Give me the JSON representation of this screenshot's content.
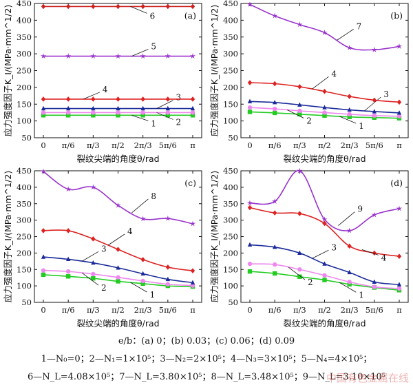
{
  "chart_data": [
    {
      "type": "line",
      "panel_label": "(a)",
      "ylabel": "应力强度因子K_I/(MPa·mm^1/2)",
      "xlabel": "裂纹尖端的角度θ/rad",
      "categories": [
        "0",
        "π/6",
        "π/3",
        "π/2",
        "2π/3",
        "5π/6",
        "π"
      ],
      "ylim": [
        50,
        450
      ],
      "yticks": [
        50,
        100,
        150,
        200,
        250,
        300,
        350,
        400,
        450
      ],
      "series": [
        {
          "name": "1",
          "color": "#22cc22",
          "marker": "square",
          "values": [
            117,
            117,
            117,
            117,
            117,
            117,
            117
          ]
        },
        {
          "name": "2",
          "color": "#ee88ee",
          "marker": "circle",
          "values": [
            125,
            125,
            125,
            125,
            125,
            125,
            125
          ]
        },
        {
          "name": "3",
          "color": "#1a2a99",
          "marker": "triangle",
          "values": [
            137,
            137,
            137,
            137,
            137,
            137,
            137
          ]
        },
        {
          "name": "4",
          "color": "#dd2222",
          "marker": "diamond",
          "values": [
            165,
            165,
            165,
            165,
            165,
            165,
            165
          ]
        },
        {
          "name": "5",
          "color": "#9933cc",
          "marker": "star",
          "values": [
            293,
            293,
            293,
            293,
            293,
            293,
            293
          ]
        },
        {
          "name": "6",
          "color": "#cc2222",
          "marker": "diamond",
          "values": [
            441,
            441,
            441,
            441,
            441,
            441,
            441
          ]
        }
      ]
    },
    {
      "type": "line",
      "panel_label": "(b)",
      "ylabel": "应力强度因子K_I/(MPa·mm^1/2)",
      "xlabel": "裂纹尖端的角度θ/rad",
      "categories": [
        "0",
        "π/6",
        "π/3",
        "π/2",
        "2π/3",
        "5π/6",
        "π"
      ],
      "ylim": [
        50,
        450
      ],
      "yticks": [
        50,
        100,
        150,
        200,
        250,
        300,
        350,
        400,
        450
      ],
      "series": [
        {
          "name": "1",
          "color": "#22cc22",
          "marker": "square",
          "values": [
            127,
            124,
            120,
            116,
            112,
            110,
            108
          ]
        },
        {
          "name": "2",
          "color": "#ee88ee",
          "marker": "circle",
          "values": [
            140,
            136,
            130,
            125,
            120,
            116,
            114
          ]
        },
        {
          "name": "3",
          "color": "#1a2a99",
          "marker": "triangle",
          "values": [
            158,
            155,
            148,
            140,
            133,
            128,
            124
          ]
        },
        {
          "name": "4",
          "color": "#dd2222",
          "marker": "diamond",
          "values": [
            214,
            211,
            202,
            188,
            173,
            162,
            156
          ]
        },
        {
          "name": "7",
          "color": "#9933cc",
          "marker": "star",
          "values": [
            447,
            413,
            387,
            363,
            318,
            312,
            322
          ]
        }
      ]
    },
    {
      "type": "line",
      "panel_label": "(c)",
      "ylabel": "应力强度因子K_I/(MPa·mm^1/2)",
      "xlabel": "裂纹尖端的角度θ/rad",
      "categories": [
        "0",
        "π/6",
        "π/3",
        "π/2",
        "2π/3",
        "5π/6",
        "π"
      ],
      "ylim": [
        50,
        450
      ],
      "yticks": [
        50,
        100,
        150,
        200,
        250,
        300,
        350,
        400,
        450
      ],
      "series": [
        {
          "name": "1",
          "color": "#22cc22",
          "marker": "square",
          "values": [
            134,
            129,
            123,
            114,
            107,
            100,
            98
          ]
        },
        {
          "name": "2",
          "color": "#ee88ee",
          "marker": "circle",
          "values": [
            147,
            144,
            136,
            126,
            115,
            105,
            101
          ]
        },
        {
          "name": "3",
          "color": "#1a2a99",
          "marker": "triangle",
          "values": [
            188,
            181,
            170,
            155,
            137,
            120,
            110
          ]
        },
        {
          "name": "4",
          "color": "#dd2222",
          "marker": "diamond",
          "values": [
            268,
            268,
            243,
            211,
            180,
            157,
            146
          ]
        },
        {
          "name": "8",
          "color": "#9933cc",
          "marker": "star",
          "values": [
            448,
            394,
            400,
            345,
            304,
            305,
            289
          ]
        }
      ]
    },
    {
      "type": "line",
      "panel_label": "(d)",
      "ylabel": "应力强度因子K_I/(MPa·mm^1/2)",
      "xlabel": "裂纹尖端的角度θ/rad",
      "categories": [
        "0",
        "π/6",
        "π/3",
        "π/2",
        "2π/3",
        "5π/6",
        "π"
      ],
      "ylim": [
        50,
        450
      ],
      "yticks": [
        50,
        100,
        150,
        200,
        250,
        300,
        350,
        400,
        450
      ],
      "series": [
        {
          "name": "1",
          "color": "#22cc22",
          "marker": "square",
          "values": [
            144,
            138,
            128,
            118,
            105,
            95,
            87
          ]
        },
        {
          "name": "2",
          "color": "#ee88ee",
          "marker": "circle",
          "values": [
            167,
            165,
            150,
            132,
            112,
            97,
            92
          ]
        },
        {
          "name": "3",
          "color": "#1a2a99",
          "marker": "triangle",
          "values": [
            225,
            218,
            200,
            167,
            141,
            112,
            104
          ]
        },
        {
          "name": "4",
          "color": "#dd2222",
          "marker": "diamond",
          "values": [
            338,
            322,
            320,
            290,
            221,
            200,
            190
          ]
        },
        {
          "name": "9",
          "color": "#9933cc",
          "marker": "star",
          "values": [
            352,
            357,
            450,
            302,
            268,
            316,
            335
          ]
        }
      ]
    }
  ],
  "captions": {
    "eb_line": "e/b：(a) 0；(b) 0.03；(c) 0.06；(d) 0.09",
    "legend_line1": "1—N₀=0；2—N₁=1×10⁵；3—N₂=2×10⁵；4—N₃=3×10⁵；5—N₄=4×10⁵；",
    "legend_line2": "6—N_L=4.08×10⁵；7—N_L=3.80×10⁵；8—N_L=3.48×10⁵；9—N_L=3.10×10⁵"
  },
  "watermark": "中国有色金属在线"
}
